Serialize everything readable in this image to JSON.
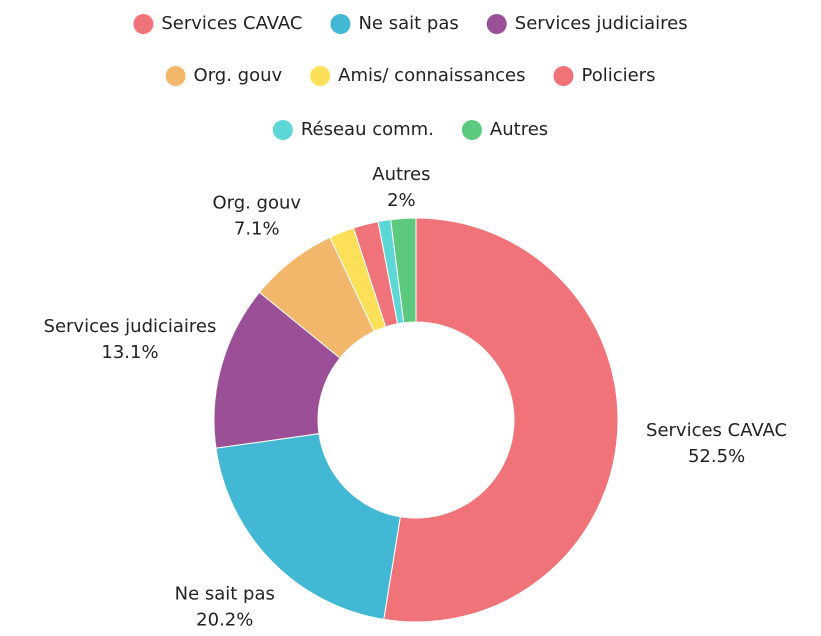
{
  "chart_data": {
    "type": "donut",
    "categories": [
      "Services CAVAC",
      "Ne sait pas",
      "Services judiciaires",
      "Org. gouv",
      "Amis/ connaissances",
      "Policiers",
      "Réseau comm.",
      "Autres"
    ],
    "values": [
      52.5,
      20.2,
      13.1,
      7.1,
      2,
      2,
      1,
      2
    ],
    "value_labels": [
      "52.5%",
      "20.2%",
      "13.1%",
      "7.1%",
      null,
      null,
      null,
      "2%"
    ],
    "colors": [
      "#f0737a",
      "#42b8d5",
      "#9b4f96",
      "#f3b76b",
      "#fde05a",
      "#f0737a",
      "#5dd6d6",
      "#5cc97f"
    ],
    "legend": "top"
  }
}
